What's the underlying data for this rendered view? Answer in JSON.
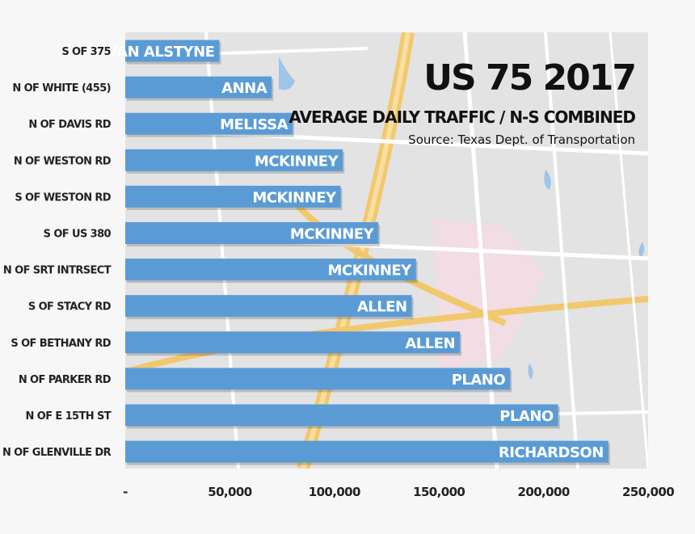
{
  "chart_data": {
    "type": "bar",
    "orientation": "horizontal",
    "title": "US 75 2017",
    "subtitle": "AVERAGE DAILY TRAFFIC / N-S COMBINED",
    "source": "Source: Texas Dept. of Transportation",
    "categories": [
      "S OF 375",
      "N OF WHITE (455)",
      "N OF DAVIS RD",
      "N OF WESTON RD",
      "S OF WESTON RD",
      "S OF US 380",
      "N OF SRT INTRSECT",
      "S OF STACY RD",
      "S OF BETHANY RD",
      "N OF PARKER RD",
      "N OF E 15TH ST",
      "N OF GLENVILLE DR"
    ],
    "bar_labels": [
      "VAN ALSTYNE",
      "ANNA",
      "MELISSA",
      "MCKINNEY",
      "MCKINNEY",
      "MCKINNEY",
      "MCKINNEY",
      "ALLEN",
      "ALLEN",
      "PLANO",
      "PLANO",
      "RICHARDSON"
    ],
    "values": [
      45000,
      70000,
      80000,
      104000,
      103000,
      121000,
      139000,
      137000,
      160000,
      184000,
      207000,
      231000
    ],
    "xlim": [
      0,
      250000
    ],
    "x_ticks": [
      0,
      50000,
      100000,
      150000,
      200000,
      250000
    ],
    "x_tick_labels": [
      "-",
      "50,000",
      "100,000",
      "150,000",
      "200,000",
      "250,000"
    ],
    "xlabel": "",
    "ylabel": "",
    "grid": false,
    "legend": "none",
    "colors": {
      "bar": "#5b9bd5",
      "bar_label": "#ffffff",
      "text": "#222222",
      "background": "#f7f7f7"
    }
  }
}
